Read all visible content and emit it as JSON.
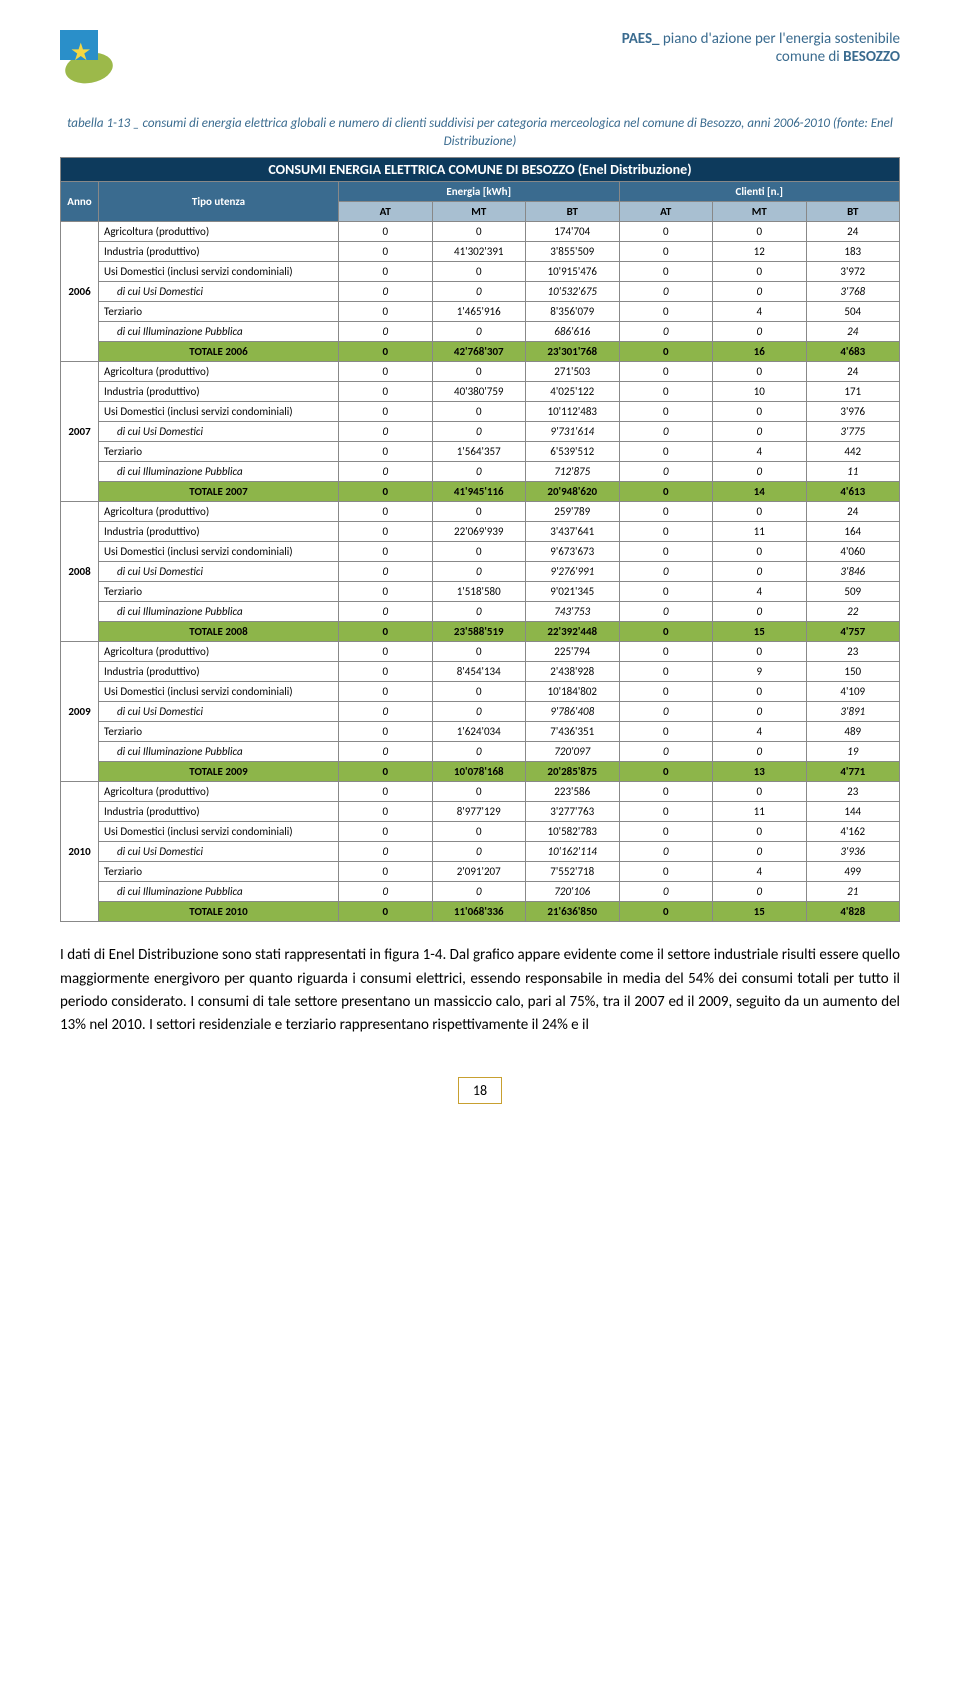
{
  "header": {
    "line1_prefix": "PAES_",
    "line1_rest": " piano d'azione per l'energia sostenibile",
    "line2_prefix": "comune di ",
    "line2_bold": "BESOZZO"
  },
  "caption": "tabella 1-13 _ consumi di energia elettrica globali e numero di clienti suddivisi per categoria merceologica nel comune di Besozzo, anni 2006-2010 (fonte: Enel Distribuzione)",
  "table": {
    "title": "CONSUMI ENERGIA ELETTRICA COMUNE DI BESOZZO (Enel Distribuzione)",
    "col_anno": "Anno",
    "col_tipo": "Tipo utenza",
    "group_energia": "Energia [kWh]",
    "group_clienti": "Clienti [n.]",
    "sub_cols": [
      "AT",
      "MT",
      "BT",
      "AT",
      "MT",
      "BT"
    ],
    "row_labels": {
      "agr": "Agricoltura (produttivo)",
      "ind": "Industria (produttivo)",
      "dom": "Usi Domestici (inclusi servizi condominiali)",
      "dom_sub": "di cui Usi Domestici",
      "terz": "Terziario",
      "ill": "di cui Illuminazione Pubblica"
    },
    "years": [
      {
        "year": "2006",
        "rows": [
          {
            "k": "agr",
            "v": [
              "0",
              "0",
              "174'704",
              "0",
              "0",
              "24"
            ]
          },
          {
            "k": "ind",
            "v": [
              "0",
              "41'302'391",
              "3'855'509",
              "0",
              "12",
              "183"
            ]
          },
          {
            "k": "dom",
            "v": [
              "0",
              "0",
              "10'915'476",
              "0",
              "0",
              "3'972"
            ]
          },
          {
            "k": "dom_sub",
            "v": [
              "0",
              "0",
              "10'532'675",
              "0",
              "0",
              "3'768"
            ]
          },
          {
            "k": "terz",
            "v": [
              "0",
              "1'465'916",
              "8'356'079",
              "0",
              "4",
              "504"
            ]
          },
          {
            "k": "ill",
            "v": [
              "0",
              "0",
              "686'616",
              "0",
              "0",
              "24"
            ]
          }
        ],
        "total_label": "TOTALE 2006",
        "total": [
          "0",
          "42'768'307",
          "23'301'768",
          "0",
          "16",
          "4'683"
        ]
      },
      {
        "year": "2007",
        "rows": [
          {
            "k": "agr",
            "v": [
              "0",
              "0",
              "271'503",
              "0",
              "0",
              "24"
            ]
          },
          {
            "k": "ind",
            "v": [
              "0",
              "40'380'759",
              "4'025'122",
              "0",
              "10",
              "171"
            ]
          },
          {
            "k": "dom",
            "v": [
              "0",
              "0",
              "10'112'483",
              "0",
              "0",
              "3'976"
            ]
          },
          {
            "k": "dom_sub",
            "v": [
              "0",
              "0",
              "9'731'614",
              "0",
              "0",
              "3'775"
            ]
          },
          {
            "k": "terz",
            "v": [
              "0",
              "1'564'357",
              "6'539'512",
              "0",
              "4",
              "442"
            ]
          },
          {
            "k": "ill",
            "v": [
              "0",
              "0",
              "712'875",
              "0",
              "0",
              "11"
            ]
          }
        ],
        "total_label": "TOTALE 2007",
        "total": [
          "0",
          "41'945'116",
          "20'948'620",
          "0",
          "14",
          "4'613"
        ]
      },
      {
        "year": "2008",
        "rows": [
          {
            "k": "agr",
            "v": [
              "0",
              "0",
              "259'789",
              "0",
              "0",
              "24"
            ]
          },
          {
            "k": "ind",
            "v": [
              "0",
              "22'069'939",
              "3'437'641",
              "0",
              "11",
              "164"
            ]
          },
          {
            "k": "dom",
            "v": [
              "0",
              "0",
              "9'673'673",
              "0",
              "0",
              "4'060"
            ]
          },
          {
            "k": "dom_sub",
            "v": [
              "0",
              "0",
              "9'276'991",
              "0",
              "0",
              "3'846"
            ]
          },
          {
            "k": "terz",
            "v": [
              "0",
              "1'518'580",
              "9'021'345",
              "0",
              "4",
              "509"
            ]
          },
          {
            "k": "ill",
            "v": [
              "0",
              "0",
              "743'753",
              "0",
              "0",
              "22"
            ]
          }
        ],
        "total_label": "TOTALE 2008",
        "total": [
          "0",
          "23'588'519",
          "22'392'448",
          "0",
          "15",
          "4'757"
        ]
      },
      {
        "year": "2009",
        "rows": [
          {
            "k": "agr",
            "v": [
              "0",
              "0",
              "225'794",
              "0",
              "0",
              "23"
            ]
          },
          {
            "k": "ind",
            "v": [
              "0",
              "8'454'134",
              "2'438'928",
              "0",
              "9",
              "150"
            ]
          },
          {
            "k": "dom",
            "v": [
              "0",
              "0",
              "10'184'802",
              "0",
              "0",
              "4'109"
            ]
          },
          {
            "k": "dom_sub",
            "v": [
              "0",
              "0",
              "9'786'408",
              "0",
              "0",
              "3'891"
            ]
          },
          {
            "k": "terz",
            "v": [
              "0",
              "1'624'034",
              "7'436'351",
              "0",
              "4",
              "489"
            ]
          },
          {
            "k": "ill",
            "v": [
              "0",
              "0",
              "720'097",
              "0",
              "0",
              "19"
            ]
          }
        ],
        "total_label": "TOTALE 2009",
        "total": [
          "0",
          "10'078'168",
          "20'285'875",
          "0",
          "13",
          "4'771"
        ]
      },
      {
        "year": "2010",
        "rows": [
          {
            "k": "agr",
            "v": [
              "0",
              "0",
              "223'586",
              "0",
              "0",
              "23"
            ]
          },
          {
            "k": "ind",
            "v": [
              "0",
              "8'977'129",
              "3'277'763",
              "0",
              "11",
              "144"
            ]
          },
          {
            "k": "dom",
            "v": [
              "0",
              "0",
              "10'582'783",
              "0",
              "0",
              "4'162"
            ]
          },
          {
            "k": "dom_sub",
            "v": [
              "0",
              "0",
              "10'162'114",
              "0",
              "0",
              "3'936"
            ]
          },
          {
            "k": "terz",
            "v": [
              "0",
              "2'091'207",
              "7'552'718",
              "0",
              "4",
              "499"
            ]
          },
          {
            "k": "ill",
            "v": [
              "0",
              "0",
              "720'106",
              "0",
              "0",
              "21"
            ]
          }
        ],
        "total_label": "TOTALE 2010",
        "total": [
          "0",
          "11'068'336",
          "21'636'850",
          "0",
          "15",
          "4'828"
        ]
      }
    ]
  },
  "body_text": "I dati di Enel Distribuzione sono stati rappresentati in figura 1-4. Dal grafico appare evidente come il settore industriale risulti essere quello maggiormente energivoro per quanto riguarda i consumi elettrici, essendo responsabile in media del 54% dei consumi totali per tutto il periodo considerato. I consumi di tale settore presentano un massiccio calo, pari al 75%, tra il 2007 ed il 2009, seguito da un aumento del 13% nel 2010. I settori residenziale e terziario rappresentano rispettivamente il 24% e il",
  "page_number": "18",
  "colors": {
    "header_main": "#0d3a5c",
    "header_sub1": "#3a6b8f",
    "header_sub2": "#a8bfd1",
    "total_row": "#8db54a"
  }
}
